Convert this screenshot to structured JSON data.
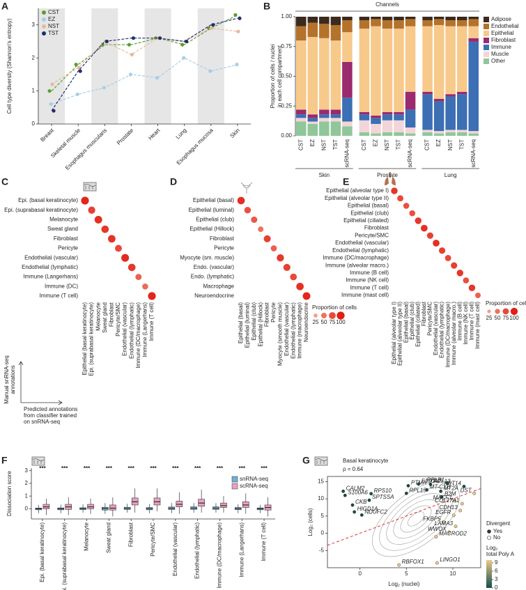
{
  "chart_data": [
    {
      "panel": "A",
      "type": "line",
      "ylabel": "Cell type diversity (Shannon's entropy)",
      "categories": [
        "Breast",
        "Skeletal muscle",
        "Esophagus muscularis",
        "Prostate",
        "Heart",
        "Lung",
        "Esophagus mucosa",
        "Skin"
      ],
      "series": [
        {
          "name": "CST",
          "color": "#5a9e2f",
          "values": [
            1.0,
            1.8,
            2.4,
            2.4,
            2.6,
            2.4,
            2.9,
            3.3
          ]
        },
        {
          "name": "EZ",
          "color": "#a9cde6",
          "values": [
            0.6,
            0.9,
            1.1,
            1.5,
            1.4,
            2.0,
            1.6,
            1.8
          ]
        },
        {
          "name": "NST",
          "color": "#e9b89c",
          "values": [
            1.2,
            1.7,
            2.5,
            2.1,
            2.6,
            2.5,
            2.9,
            2.8
          ]
        },
        {
          "name": "TST",
          "color": "#1f2f6e",
          "values": [
            0.4,
            1.6,
            2.5,
            2.6,
            2.6,
            2.5,
            3.0,
            3.2
          ]
        }
      ],
      "ylim": [
        0,
        3.5
      ],
      "yticks": [
        0,
        1,
        2,
        3
      ],
      "legend": "top-left"
    },
    {
      "panel": "B",
      "type": "stacked_bar",
      "annotation": "Channels",
      "ylabel": [
        "Proportion of cells / nuclei",
        "in each cell compartment"
      ],
      "groups": [
        {
          "name": "Skin",
          "categories": [
            "CST",
            "EZ",
            "NST",
            "TST",
            "scRNA-seq"
          ]
        },
        {
          "name": "Prostate",
          "categories": [
            "CST",
            "EZ",
            "NST",
            "TST",
            "scRNA-seq"
          ]
        },
        {
          "name": "Lung",
          "categories": [
            "CST",
            "EZ",
            "NST",
            "TST",
            "scRNA-seq"
          ]
        }
      ],
      "series": [
        {
          "name": "Adipose",
          "color": "#3b2a1e",
          "values": [
            0.08,
            0.05,
            0.06,
            0.07,
            0.03,
            0.03,
            0.02,
            0.03,
            0.03,
            0.02,
            0.03,
            0.02,
            0.03,
            0.03,
            0.02
          ]
        },
        {
          "name": "Endothelial",
          "color": "#b5722a",
          "values": [
            0.12,
            0.12,
            0.12,
            0.13,
            0.1,
            0.07,
            0.06,
            0.07,
            0.07,
            0.06,
            0.05,
            0.05,
            0.05,
            0.05,
            0.06
          ]
        },
        {
          "name": "Epithelial",
          "color": "#f7c98b",
          "values": [
            0.58,
            0.65,
            0.6,
            0.58,
            0.25,
            0.7,
            0.75,
            0.7,
            0.7,
            0.55,
            0.55,
            0.62,
            0.57,
            0.55,
            0.1
          ]
        },
        {
          "name": "Fibroblast",
          "color": "#9b2a6e",
          "values": [
            0.04,
            0.03,
            0.04,
            0.04,
            0.3,
            0.02,
            0.02,
            0.02,
            0.02,
            0.15,
            0.02,
            0.02,
            0.02,
            0.02,
            0.03
          ]
        },
        {
          "name": "Immune",
          "color": "#3c6fb4",
          "values": [
            0.03,
            0.03,
            0.03,
            0.03,
            0.2,
            0.05,
            0.05,
            0.05,
            0.05,
            0.15,
            0.3,
            0.25,
            0.28,
            0.3,
            0.75
          ]
        },
        {
          "name": "Muscle",
          "color": "#f2d5d8",
          "values": [
            0.03,
            0.02,
            0.03,
            0.03,
            0.04,
            0.1,
            0.08,
            0.1,
            0.1,
            0.05,
            0.02,
            0.02,
            0.02,
            0.02,
            0.02
          ]
        },
        {
          "name": "Other",
          "color": "#8fc79a",
          "values": [
            0.12,
            0.1,
            0.12,
            0.12,
            0.08,
            0.03,
            0.02,
            0.03,
            0.03,
            0.02,
            0.03,
            0.02,
            0.03,
            0.03,
            0.02
          ]
        }
      ],
      "ylim": [
        0,
        1
      ],
      "yticks": [
        {
          "value": 0,
          "label": "0.00"
        },
        {
          "value": 0.25,
          "label": "0.25"
        },
        {
          "value": 0.5,
          "label": "0.50"
        },
        {
          "value": 0.75,
          "label": "0.75"
        },
        {
          "value": 1,
          "label": "1.00"
        }
      ],
      "legend": "right"
    },
    {
      "panel": "C",
      "type": "dot_matrix",
      "rows": [
        "Epi. (basal keratinocyte)",
        "Epi. (suprabasal keratinocyte)",
        "Melanocyte",
        "Sweat gland",
        "Fibroblast",
        "Pericyte",
        "Endothelial (vascular)",
        "Endothelial (lymphatic)",
        "Immune (Langerhans)",
        "Immune (DC)",
        "Immune (T cell)"
      ],
      "columns": [
        "Epithelial (basal keratinocyte)",
        "Epi. (suprabasal keratinocyte)",
        "Melanocyte",
        "Sweat gland",
        "Fibroblast",
        "Pericyte/SMC",
        "Endothelial (vascular)",
        "Endothelial (lymphatic)",
        "Immune (DC/macrophage)",
        "Immune (Langerhans)",
        "Immune (T cell)"
      ],
      "values": [
        95,
        80,
        90,
        85,
        88,
        75,
        92,
        85,
        60,
        55,
        95
      ],
      "size_lim": [
        0,
        100
      ],
      "axis_note": {
        "y": [
          "Manual snRNA-seq",
          "annotations"
        ],
        "x": [
          "Predicted annotations",
          "from classifier trained",
          "on snRNA-seq"
        ]
      }
    },
    {
      "panel": "D",
      "type": "dot_matrix",
      "rows": [
        "Epithelial (basal)",
        "Epithelial (luminal)",
        "Epithelial (club)",
        "Epithelial (Hillock)",
        "Fibroblast",
        "Pericyte",
        "Myocyte (sm. muscle)",
        "Endo. (vascular)",
        "Endo. (lymphatic)",
        "Macrophage",
        "Neuroendocrine"
      ],
      "columns": [
        "Epithelial (basal)",
        "Epithelial (luminal)",
        "Epithelial (club)",
        "Epithelial (Hillock)",
        "Fibroblast",
        "Pericyte",
        "Myocyte (smooth muscle)",
        "Endothelial (vascular)",
        "Endothelial (lymphatic)",
        "Immune (macrophage)",
        "Neuroendocrine"
      ],
      "values": [
        90,
        70,
        65,
        50,
        80,
        60,
        85,
        80,
        75,
        90,
        95
      ],
      "size_lim": [
        0,
        100
      ],
      "size_legend": {
        "title": "Proportion of cells",
        "ticks": [
          25,
          50,
          75,
          100
        ]
      }
    },
    {
      "panel": "E",
      "type": "dot_matrix",
      "rows": [
        "Epithelial (alveolar type I)",
        "Epithelial (alveolar type II)",
        "Epithelial (basal)",
        "Epithelial (club)",
        "Epithelial (ciliated)",
        "Fibroblast",
        "Pericyte/SMC",
        "Endothelial (vascular)",
        "Endothelial (lymphatic)",
        "Immune (DC/macrophage)",
        "Immune (alveolar macro.)",
        "Immune (B cell)",
        "Immune (NK cell)",
        "Immune (T cell)",
        "Immune (mast cell)"
      ],
      "columns": [
        "Epithelial (alveolar type I)",
        "Epithelial (alveolar type II)",
        "Epithelial (basal)",
        "Epithelial (club)",
        "Epithelial (ciliated)",
        "Fibroblast",
        "Pericyte/SMC",
        "Endothelial (vascular)",
        "Endothelial (lymphatic)",
        "Immune (DC/macrophage)",
        "Immune (alveolar macro.)",
        "Immune (B cell)",
        "Immune (NK cell)",
        "Immune (T cell)",
        "Immune (mast cell)"
      ],
      "values": [
        85,
        75,
        70,
        70,
        85,
        90,
        80,
        90,
        80,
        75,
        80,
        85,
        70,
        85,
        60
      ],
      "size_lim": [
        0,
        100
      ],
      "size_legend": {
        "title": "Proportion of cells",
        "ticks": [
          25,
          50,
          75,
          100
        ]
      }
    },
    {
      "panel": "F",
      "type": "box",
      "ylabel": "Dissociation score",
      "categories": [
        "Epi. (basal keratinocyte)",
        "Epi. (suprabasal keratinocyte)",
        "Melanocyte",
        "Sweat gland",
        "Fibroblast",
        "Pericyte/SMC",
        "Endothelial (vascular)",
        "Endothelial (lymphatic)",
        "Immune (DC/macrophage)",
        "Immune (Langerhans)",
        "Immune (T cell)"
      ],
      "significance": [
        "***",
        "***",
        "***",
        "***",
        "***",
        "***",
        "***",
        "***",
        "***",
        "***",
        "***"
      ],
      "series": [
        {
          "name": "snRNA-seq",
          "color": "#6fb3d6",
          "min": [
            -0.35,
            -0.35,
            -0.3,
            -0.4,
            -0.3,
            -0.35,
            -0.35,
            -0.3,
            -0.3,
            -0.35,
            -0.35
          ],
          "q1": [
            -0.08,
            -0.08,
            -0.06,
            -0.1,
            -0.05,
            -0.08,
            -0.06,
            -0.05,
            -0.05,
            -0.07,
            -0.08
          ],
          "median": [
            0,
            0,
            0.01,
            0.02,
            0.03,
            0.01,
            0.04,
            0.05,
            0.05,
            0.02,
            0
          ],
          "q3": [
            0.06,
            0.07,
            0.08,
            0.12,
            0.12,
            0.1,
            0.14,
            0.15,
            0.15,
            0.1,
            0.07
          ],
          "max": [
            0.3,
            0.32,
            0.35,
            0.45,
            0.4,
            0.38,
            0.45,
            0.45,
            0.45,
            0.35,
            0.3
          ]
        },
        {
          "name": "scRNA-seq",
          "color": "#e8a0c0",
          "min": [
            -0.5,
            -0.5,
            -0.4,
            -0.6,
            -0.3,
            -0.2,
            -0.4,
            -0.3,
            -0.3,
            -0.4,
            -0.6
          ],
          "q1": [
            0,
            -0.05,
            0,
            -0.1,
            0.3,
            0.3,
            0.15,
            0.2,
            0.1,
            0.1,
            -0.1
          ],
          "median": [
            0.15,
            0.15,
            0.15,
            0.05,
            0.55,
            0.55,
            0.35,
            0.45,
            0.25,
            0.3,
            0.1
          ],
          "q3": [
            0.35,
            0.35,
            0.35,
            0.3,
            0.85,
            0.85,
            0.6,
            0.75,
            0.45,
            0.55,
            0.3
          ],
          "max": [
            0.8,
            0.9,
            0.8,
            0.9,
            1.6,
            1.6,
            1.3,
            1.5,
            1.0,
            1.2,
            0.9
          ]
        }
      ],
      "ylim": [
        -0.8,
        3.2
      ],
      "yticks": [
        0,
        1,
        2,
        3
      ],
      "legend": "top-right"
    },
    {
      "panel": "G",
      "type": "scatter",
      "title": "Basal keratinocyte",
      "subtitle": "ρ = 0.64",
      "xlabel": "Log₂ (nuclei)",
      "ylabel": "Log₂ (cells)",
      "labels": [
        "PTMA",
        "S100A2",
        "RPL13",
        "RPLP1",
        "KRT14",
        "CALM2",
        "MT-CYB",
        "MT2A",
        "RPL15",
        "S100A6",
        "RPS10",
        "SPTSSA",
        "DST",
        "B2M",
        "MACF1",
        "COL17A1",
        "CKB",
        "HIGD1A",
        "NDUFC2",
        "CDH13",
        "EGFR",
        "FKBP5",
        "LAMA3",
        "WWOX",
        "MACROD2",
        "RBFOX1",
        "LINGO1"
      ],
      "x": [
        5.2,
        6.3,
        7.6,
        9.4,
        11.2,
        -1.8,
        7.2,
        8.7,
        5.0,
        -1.6,
        1.2,
        1.0,
        12.3,
        8.8,
        10.2,
        11.0,
        -0.8,
        -0.6,
        0.2,
        10.8,
        10.1,
        9.0,
        10.3,
        9.6,
        8.2,
        4.2,
        8.3
      ],
      "y": [
        13.8,
        14.3,
        14.2,
        14.6,
        13.6,
        12.2,
        12.6,
        12.2,
        11.6,
        11.0,
        11.5,
        9.6,
        11.6,
        10.6,
        9.4,
        8.6,
        8.2,
        6.2,
        5.3,
        6.6,
        5.2,
        3.3,
        2.0,
        0.3,
        -1.0,
        -9.2,
        -8.6
      ],
      "xlim": [
        -3.5,
        13
      ],
      "ylim": [
        -10,
        16.5
      ],
      "xticks": [
        0,
        5,
        10
      ],
      "yticks": [
        -5,
        0,
        5,
        10,
        15
      ],
      "divergent_legend": {
        "title": "Divergent",
        "items": [
          "Yes",
          "No"
        ]
      },
      "colorbar": {
        "title": [
          "Log₂",
          "total Poly A"
        ],
        "ticks": [
          0,
          3,
          6,
          9
        ],
        "lim": [
          0,
          10
        ],
        "colors": [
          "#134e4a",
          "#ecc98a"
        ]
      }
    }
  ]
}
